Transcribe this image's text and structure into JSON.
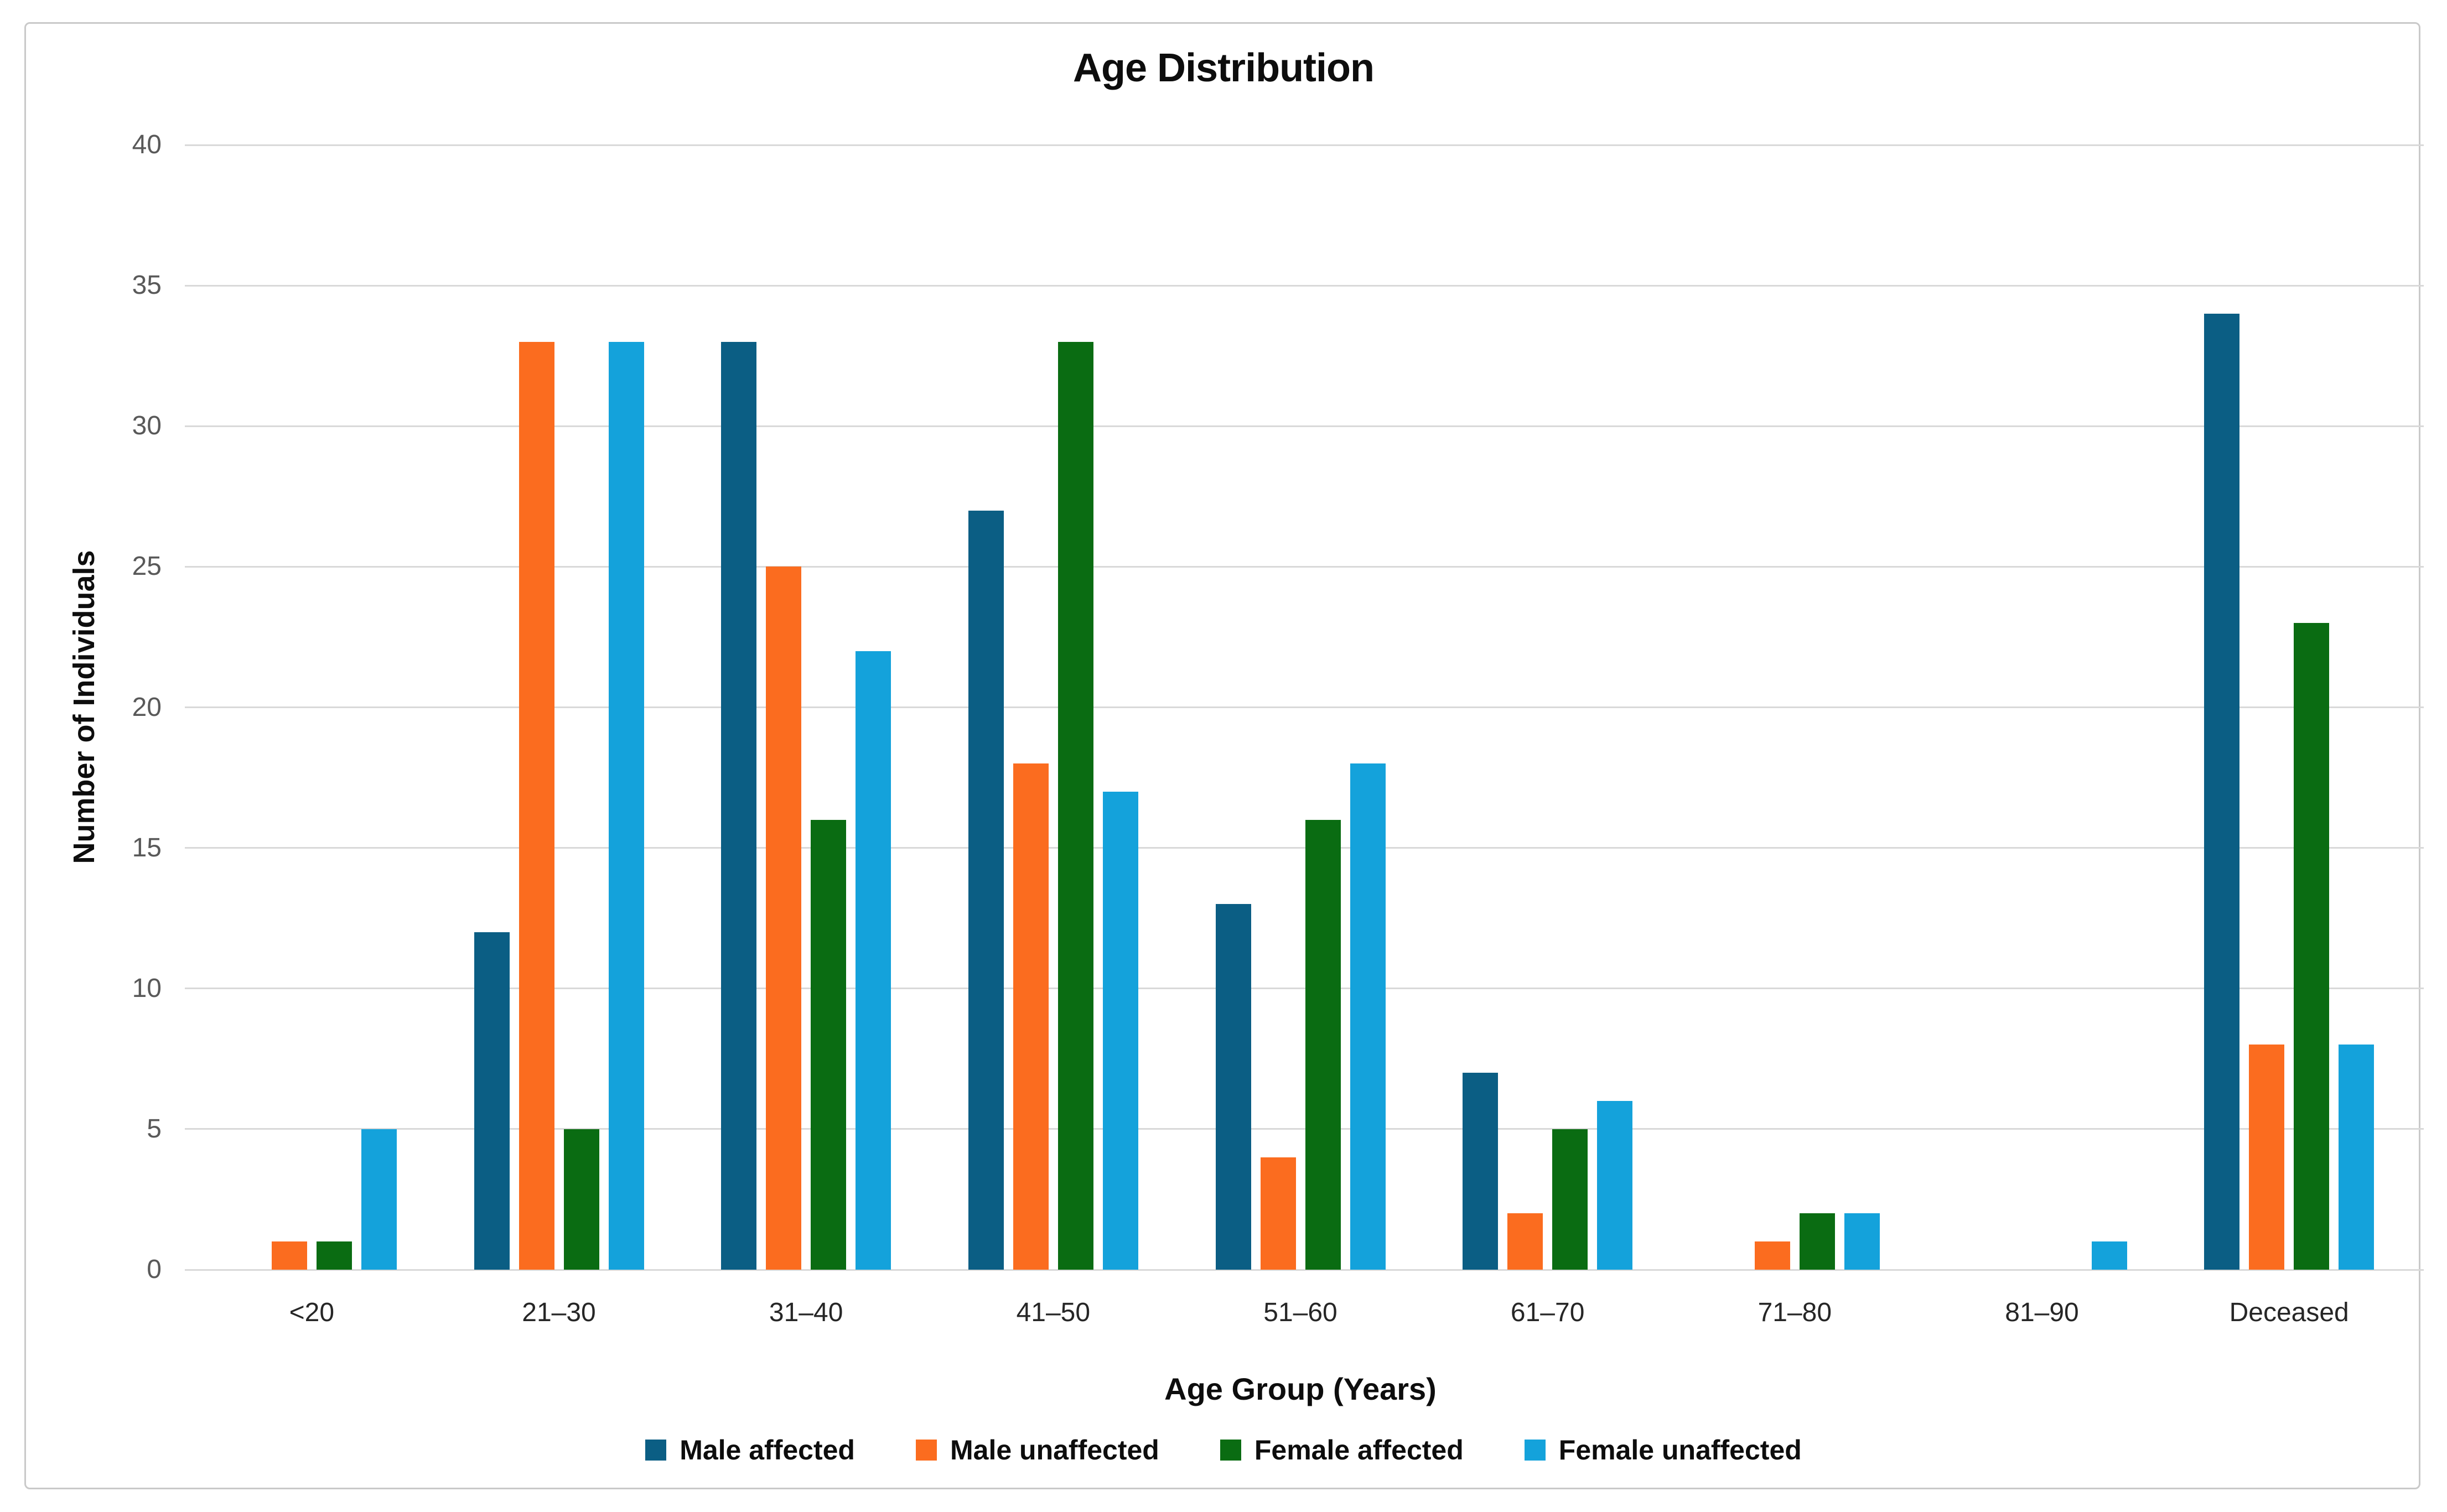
{
  "chart_data": {
    "type": "bar",
    "title": "Age Distribution",
    "xlabel": "Age Group (Years)",
    "ylabel": "Number of Individuals",
    "ylim": [
      0,
      40
    ],
    "ytick_step": 5,
    "grid": true,
    "legend_position": "bottom",
    "categories": [
      "<20",
      "21–30",
      "31–40",
      "41–50",
      "51–60",
      "61–70",
      "71–80",
      "81–90",
      "Deceased"
    ],
    "series": [
      {
        "name": "Male affected",
        "color": "#0B5E84",
        "values": [
          0,
          12,
          33,
          27,
          13,
          7,
          0,
          0,
          34
        ]
      },
      {
        "name": "Male unaffected",
        "color": "#FB6C1F",
        "values": [
          1,
          33,
          25,
          18,
          4,
          2,
          1,
          0,
          8
        ]
      },
      {
        "name": "Female affected",
        "color": "#0A6C12",
        "values": [
          1,
          5,
          16,
          33,
          16,
          5,
          2,
          0,
          23
        ]
      },
      {
        "name": "Female unaffected",
        "color": "#14A2DB",
        "values": [
          5,
          33,
          22,
          17,
          18,
          6,
          2,
          1,
          8
        ]
      }
    ]
  },
  "style_colors": {
    "frame_border": "#C9C9C9",
    "gridline": "#D9D9D9",
    "ytick_text": "#595959",
    "xtick_text": "#262626"
  }
}
